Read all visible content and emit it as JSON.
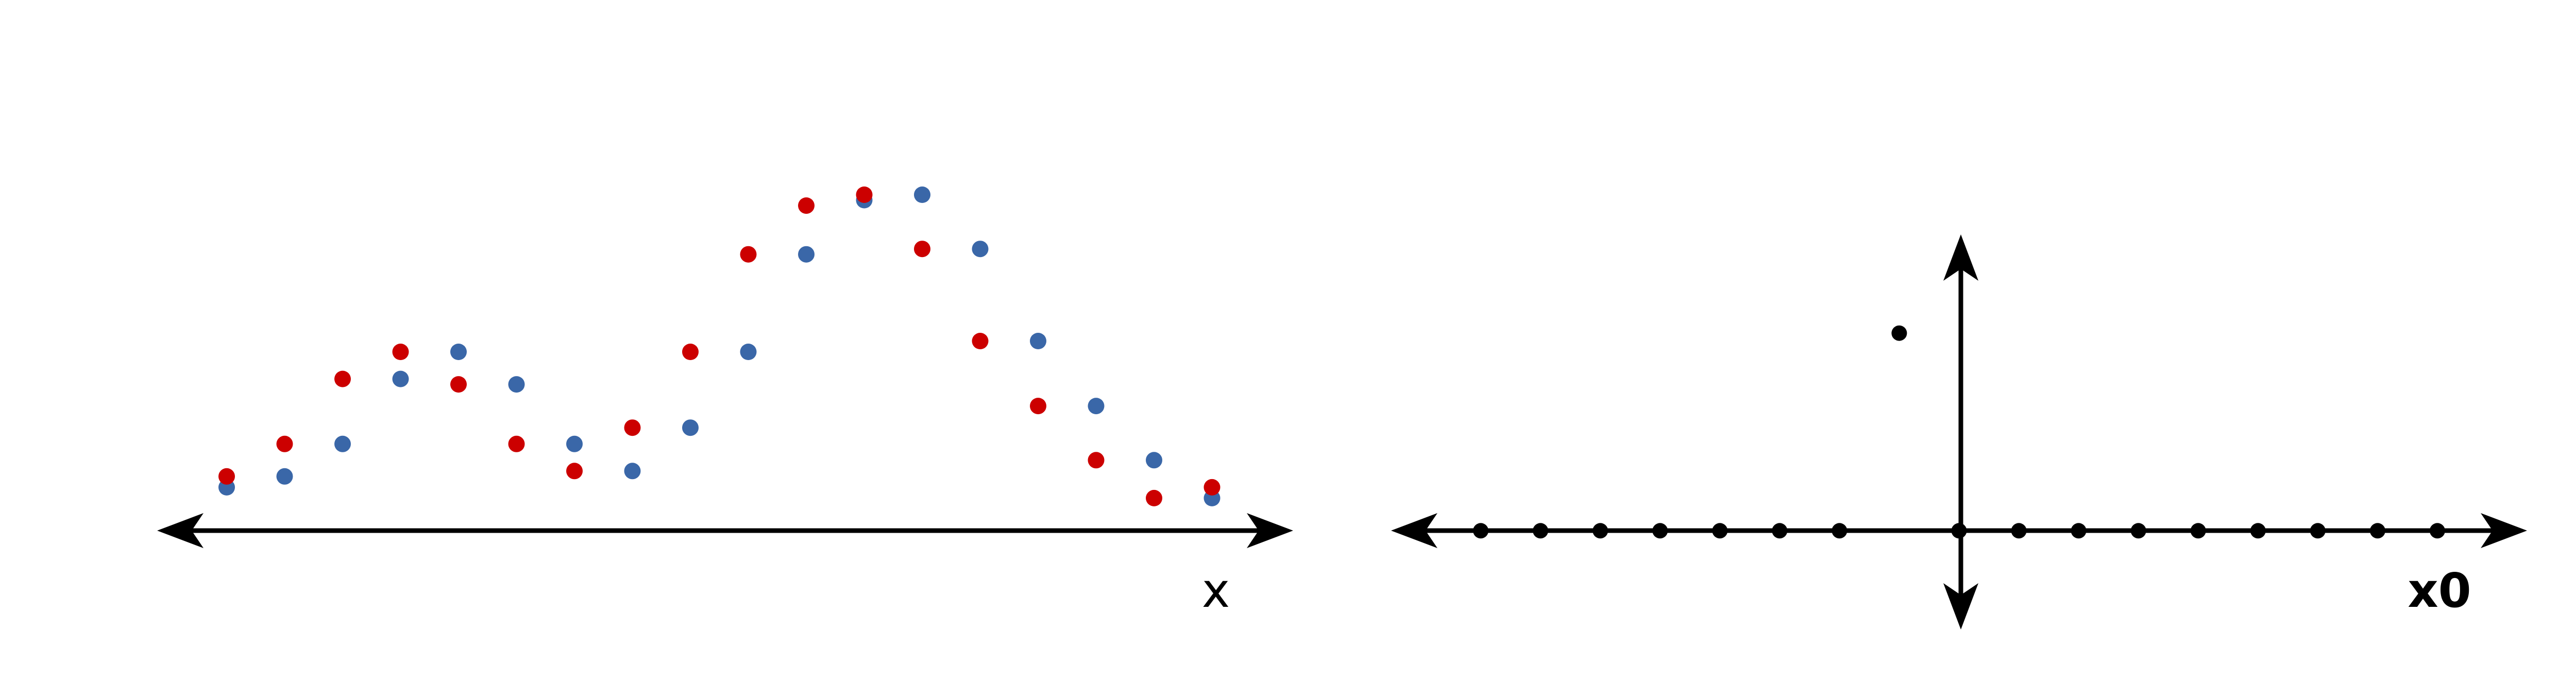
{
  "chart_data": [
    {
      "type": "scatter",
      "xlabel": "x",
      "ylabel": "",
      "x": [
        1,
        2,
        3,
        4,
        5,
        6,
        7,
        8,
        9,
        10,
        11,
        12,
        13,
        14,
        15,
        16,
        17,
        18
      ],
      "xlim": [
        -0.2,
        19.4
      ],
      "ylim": [
        -0.2,
        6.2
      ],
      "grid": false,
      "series": [
        {
          "color": "#3a67a8",
          "values": [
            0.6,
            0.8,
            1.4,
            2.6,
            3.1,
            2.5,
            1.4,
            0.9,
            1.7,
            3.1,
            4.9,
            5.9,
            6.0,
            5.0,
            3.3,
            2.1,
            1.1,
            0.4
          ]
        },
        {
          "color": "#cc0000",
          "values": [
            0.8,
            1.4,
            2.6,
            3.1,
            2.5,
            1.4,
            0.9,
            1.7,
            3.1,
            4.9,
            5.8,
            6.0,
            5.0,
            3.3,
            2.1,
            1.1,
            0.4,
            0.6
          ]
        }
      ]
    },
    {
      "type": "scatter",
      "xlabel": "x0",
      "ylabel": "",
      "x": [
        -8,
        -7,
        -6,
        -5,
        -4,
        -3,
        -2,
        0,
        1,
        2,
        3,
        4,
        5,
        6,
        7,
        8
      ],
      "xlim": [
        -9.5,
        9.5
      ],
      "ylim": [
        -1.6,
        4.8
      ],
      "grid": false,
      "axis_points_color": "#000000",
      "highlight_point": {
        "x": -1,
        "y": 3.2,
        "color": "#000000"
      }
    }
  ]
}
